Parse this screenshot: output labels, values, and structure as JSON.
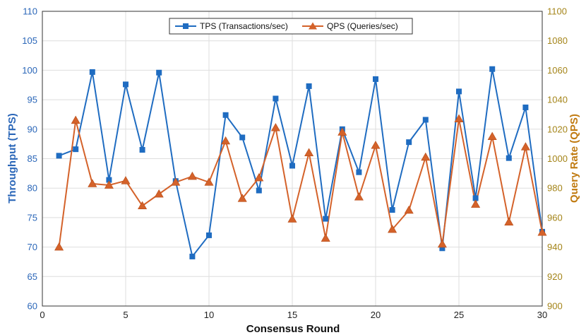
{
  "chart_data": {
    "type": "line",
    "x": [
      1,
      2,
      3,
      4,
      5,
      6,
      7,
      8,
      9,
      10,
      11,
      12,
      13,
      14,
      15,
      16,
      17,
      18,
      19,
      20,
      21,
      22,
      23,
      24,
      25,
      26,
      27,
      28,
      29,
      30
    ],
    "series": [
      {
        "name": "TPS (Transactions/sec)",
        "axis": "left",
        "color": "#1f6cc1",
        "marker": "square",
        "values": [
          85.5,
          86.6,
          99.7,
          81.4,
          97.6,
          86.5,
          99.6,
          81.2,
          68.4,
          72.0,
          92.4,
          88.6,
          79.6,
          95.2,
          83.8,
          97.3,
          74.8,
          90.0,
          82.7,
          98.5,
          76.3,
          87.8,
          91.6,
          69.8,
          96.4,
          78.3,
          100.2,
          85.1,
          93.7,
          72.6
        ]
      },
      {
        "name": "QPS (Queries/sec)",
        "axis": "right",
        "color": "#d4622a",
        "marker": "triangle",
        "values": [
          940,
          1026,
          983,
          982,
          985,
          968,
          976,
          984,
          988,
          984,
          1012,
          973,
          987,
          1021,
          959,
          1004,
          946,
          1018,
          974,
          1009,
          952,
          965,
          1001,
          942,
          1027,
          969,
          1015,
          957,
          1008,
          950
        ]
      }
    ],
    "xlabel": "Consensus Round",
    "ylabel_left": "Throughput (TPS)",
    "ylabel_right": "Query Rate (QPS)",
    "xlim": [
      0,
      30
    ],
    "ylim_left": [
      60,
      110
    ],
    "ylim_right": [
      900,
      1100
    ],
    "xticks": [
      0,
      5,
      10,
      15,
      20,
      25,
      30
    ],
    "yticks_left": [
      60,
      65,
      70,
      75,
      80,
      85,
      90,
      95,
      100,
      105,
      110
    ],
    "yticks_right": [
      900,
      920,
      940,
      960,
      980,
      1000,
      1020,
      1040,
      1060,
      1080,
      1100
    ],
    "grid": true,
    "legend_position": "top-center",
    "left_axis_color": "#2a66b8",
    "right_axis_color": "#a48418"
  }
}
